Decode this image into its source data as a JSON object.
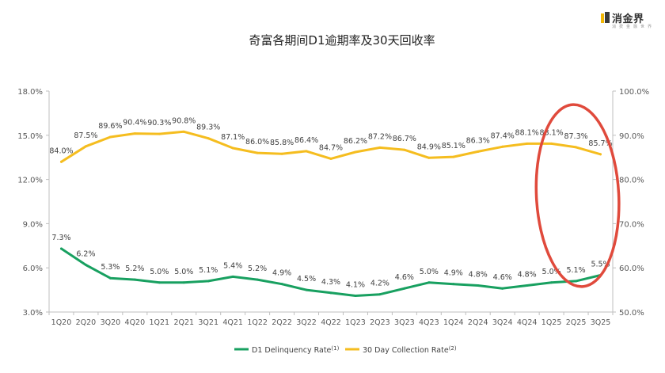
{
  "brand": {
    "name": "消金界",
    "tagline": "消 费 金 融 世 界",
    "colors": {
      "mark_primary": "#f2b705",
      "mark_secondary": "#3a3a3a"
    }
  },
  "chart_data": {
    "type": "line",
    "title": "奇富各期间D1逾期率及30天回收率",
    "categories": [
      "1Q20",
      "2Q20",
      "3Q20",
      "4Q20",
      "1Q21",
      "2Q21",
      "3Q21",
      "4Q21",
      "1Q22",
      "2Q22",
      "3Q22",
      "4Q22",
      "1Q23",
      "2Q23",
      "3Q23",
      "4Q23",
      "1Q24",
      "2Q24",
      "3Q24",
      "4Q24",
      "1Q25",
      "2Q25",
      "3Q25"
    ],
    "left_axis": {
      "min": 3.0,
      "max": 18.0,
      "ticks": [
        "3.0%",
        "6.0%",
        "9.0%",
        "12.0%",
        "15.0%",
        "18.0%"
      ],
      "tick_values": [
        3,
        6,
        9,
        12,
        15,
        18
      ]
    },
    "right_axis": {
      "min": 50.0,
      "max": 100.0,
      "ticks": [
        "50.0%",
        "60.0%",
        "70.0%",
        "80.0%",
        "90.0%",
        "100.0%"
      ],
      "tick_values": [
        50,
        60,
        70,
        80,
        90,
        100
      ]
    },
    "series": [
      {
        "name": "D1 Delinquency Rate",
        "note": "(1)",
        "axis": "left",
        "color": "#18a060",
        "values": [
          7.3,
          6.2,
          5.3,
          5.2,
          5.0,
          5.0,
          5.1,
          5.4,
          5.2,
          4.9,
          4.5,
          4.3,
          4.1,
          4.2,
          4.6,
          5.0,
          4.9,
          4.8,
          4.6,
          4.8,
          5.0,
          5.1,
          5.5
        ],
        "labels": [
          "7.3%",
          "6.2%",
          "5.3%",
          "5.2%",
          "5.0%",
          "5.0%",
          "5.1%",
          "5.4%",
          "5.2%",
          "4.9%",
          "4.5%",
          "4.3%",
          "4.1%",
          "4.2%",
          "4.6%",
          "5.0%",
          "4.9%",
          "4.8%",
          "4.6%",
          "4.8%",
          "5.0%",
          "5.1%",
          "5.5%"
        ]
      },
      {
        "name": "30 Day Collection Rate",
        "note": "(2)",
        "axis": "right",
        "color": "#f5bd1f",
        "values": [
          84.0,
          87.5,
          89.6,
          90.4,
          90.3,
          90.8,
          89.3,
          87.1,
          86.0,
          85.8,
          86.4,
          84.7,
          86.2,
          87.2,
          86.7,
          84.9,
          85.1,
          86.3,
          87.4,
          88.1,
          88.1,
          87.3,
          85.7
        ],
        "labels": [
          "84.0%",
          "87.5%",
          "89.6%",
          "90.4%",
          "90.3%",
          "90.8%",
          "89.3%",
          "87.1%",
          "86.0%",
          "85.8%",
          "86.4%",
          "84.7%",
          "86.2%",
          "87.2%",
          "86.7%",
          "84.9%",
          "85.1%",
          "86.3%",
          "87.4%",
          "88.1%",
          "88.1%",
          "87.3%",
          "85.7%"
        ]
      }
    ],
    "legend_position": "bottom-center",
    "grid": false,
    "annotation": {
      "type": "ellipse",
      "color": "#e04a3c",
      "highlights": [
        "1Q25",
        "2Q25",
        "3Q25"
      ]
    },
    "colors": {
      "axis": "#bfbfbf",
      "text": "#595959",
      "title": "#222222"
    }
  }
}
